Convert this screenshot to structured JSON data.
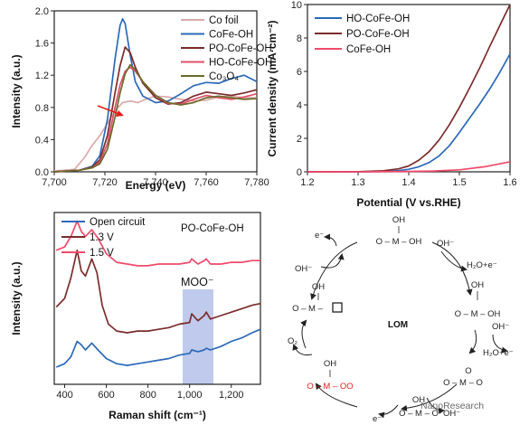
{
  "chart_data": [
    {
      "type": "line",
      "xlabel": "Energy (eV)",
      "ylabel": "Intensity (a.u.)",
      "xlim": [
        7700,
        7780
      ],
      "ylim": [
        0,
        2.0
      ],
      "xticks": [
        "7,700",
        "7,720",
        "7,740",
        "7,760",
        "7,780"
      ],
      "yticks": [
        "0.0",
        "0.4",
        "0.8",
        "1.2",
        "1.6",
        "2.0"
      ],
      "legend": "top-right",
      "series": [
        {
          "name": "Co foil",
          "color": "#dba9a9",
          "x": [
            7700,
            7708,
            7712,
            7715,
            7718,
            7721,
            7724,
            7727,
            7730,
            7733,
            7736,
            7740,
            7745,
            7750,
            7755,
            7760,
            7765,
            7770,
            7775,
            7780
          ],
          "y": [
            0.01,
            0.03,
            0.18,
            0.33,
            0.45,
            0.6,
            0.76,
            0.86,
            0.88,
            0.86,
            0.9,
            0.94,
            0.93,
            0.9,
            0.88,
            0.89,
            0.93,
            0.94,
            0.92,
            0.92
          ]
        },
        {
          "name": "CoFe-OH",
          "color": "#2b69b8",
          "x": [
            7700,
            7710,
            7715,
            7718,
            7721,
            7724,
            7726,
            7727,
            7728,
            7730,
            7732,
            7735,
            7740,
            7745,
            7750,
            7755,
            7760,
            7765,
            7770,
            7775,
            7780
          ],
          "y": [
            0.0,
            0.02,
            0.07,
            0.2,
            0.65,
            1.4,
            1.82,
            1.9,
            1.84,
            1.45,
            1.12,
            0.94,
            0.86,
            0.88,
            0.97,
            1.07,
            1.11,
            1.1,
            1.16,
            1.2,
            1.12
          ]
        },
        {
          "name": "PO-CoFe-OH",
          "color": "#7b2c2c",
          "x": [
            7700,
            7710,
            7715,
            7718,
            7721,
            7724,
            7726,
            7728,
            7730,
            7732,
            7735,
            7740,
            7745,
            7750,
            7755,
            7760,
            7765,
            7770,
            7775,
            7780
          ],
          "y": [
            0.0,
            0.02,
            0.06,
            0.15,
            0.45,
            0.98,
            1.32,
            1.55,
            1.48,
            1.3,
            1.1,
            0.92,
            0.84,
            0.86,
            0.94,
            0.99,
            0.97,
            0.95,
            0.98,
            1.02
          ]
        },
        {
          "name": "HO-CoFe-OH",
          "color": "#e0506a",
          "x": [
            7700,
            7710,
            7715,
            7718,
            7721,
            7724,
            7726,
            7728,
            7730,
            7732,
            7735,
            7740,
            7745,
            7750,
            7755,
            7760,
            7765,
            7770,
            7775,
            7780
          ],
          "y": [
            0.0,
            0.02,
            0.05,
            0.12,
            0.35,
            0.8,
            1.08,
            1.25,
            1.3,
            1.25,
            1.12,
            0.95,
            0.85,
            0.84,
            0.9,
            0.95,
            0.92,
            0.9,
            0.93,
            0.97
          ]
        },
        {
          "name": "Co₃O₄",
          "color": "#6b6b2a",
          "x": [
            7700,
            7710,
            7715,
            7718,
            7721,
            7724,
            7726,
            7728,
            7730,
            7732,
            7735,
            7740,
            7745,
            7750,
            7755,
            7760,
            7765,
            7770,
            7775,
            7780
          ],
          "y": [
            0.0,
            0.02,
            0.05,
            0.1,
            0.28,
            0.68,
            0.98,
            1.22,
            1.33,
            1.27,
            1.12,
            0.95,
            0.86,
            0.83,
            0.86,
            0.92,
            0.94,
            0.92,
            0.9,
            0.91
          ]
        }
      ],
      "annotations": []
    },
    {
      "type": "line",
      "xlabel": "Potential (V vs.RHE)",
      "ylabel": "Current density (mA·cm⁻²)",
      "xlim": [
        1.2,
        1.6
      ],
      "ylim": [
        0,
        10
      ],
      "xticks": [
        "1.2",
        "1.3",
        "1.4",
        "1.5",
        "1.6"
      ],
      "yticks": [
        "0",
        "2",
        "4",
        "6",
        "8",
        "10"
      ],
      "legend": "top-left",
      "series": [
        {
          "name": "HO-CoFe-OH",
          "color": "#2b69b8",
          "x": [
            1.2,
            1.3,
            1.35,
            1.38,
            1.4,
            1.42,
            1.44,
            1.46,
            1.48,
            1.5,
            1.52,
            1.54,
            1.56,
            1.58,
            1.6
          ],
          "y": [
            0,
            0,
            0.02,
            0.07,
            0.15,
            0.3,
            0.55,
            0.95,
            1.55,
            2.35,
            3.2,
            4.05,
            4.95,
            5.95,
            7.05
          ]
        },
        {
          "name": "PO-CoFe-OH",
          "color": "#7b2c2c",
          "x": [
            1.2,
            1.3,
            1.35,
            1.38,
            1.4,
            1.42,
            1.44,
            1.46,
            1.48,
            1.5,
            1.52,
            1.54,
            1.56,
            1.58,
            1.6
          ],
          "y": [
            0,
            0.01,
            0.06,
            0.18,
            0.35,
            0.7,
            1.2,
            1.9,
            2.8,
            3.85,
            5.0,
            6.2,
            7.5,
            8.75,
            10.0
          ]
        },
        {
          "name": "CoFe-OH",
          "color": "#f04a6b",
          "x": [
            1.2,
            1.3,
            1.4,
            1.45,
            1.5,
            1.55,
            1.6
          ],
          "y": [
            0,
            0,
            0.02,
            0.05,
            0.12,
            0.3,
            0.6
          ]
        }
      ]
    },
    {
      "type": "line",
      "title": "PO-CoFe-OH",
      "xlabel": "Raman shift (cm⁻¹)",
      "ylabel": "Intensity (a.u.)",
      "xlim": [
        350,
        1340
      ],
      "xticks": [
        "400",
        "600",
        "800",
        "1,000",
        "1,200"
      ],
      "legend": "top-left",
      "annotations": [
        "MOO⁻"
      ],
      "highlight_band": [
        970,
        1110
      ],
      "series": [
        {
          "name": "Open circuit",
          "color": "#2b69b8",
          "x": [
            360,
            400,
            430,
            460,
            480,
            500,
            530,
            560,
            600,
            650,
            700,
            750,
            800,
            850,
            900,
            950,
            1000,
            1010,
            1040,
            1070,
            1080,
            1100,
            1150,
            1200,
            1250,
            1300,
            1340
          ],
          "y": [
            0.1,
            0.12,
            0.16,
            0.25,
            0.23,
            0.2,
            0.24,
            0.2,
            0.15,
            0.12,
            0.11,
            0.12,
            0.13,
            0.14,
            0.15,
            0.17,
            0.18,
            0.2,
            0.19,
            0.2,
            0.21,
            0.2,
            0.22,
            0.25,
            0.27,
            0.3,
            0.32
          ]
        },
        {
          "name": "1.3 V",
          "color": "#7b2c2c",
          "x": [
            360,
            400,
            430,
            460,
            480,
            500,
            530,
            555,
            580,
            610,
            650,
            700,
            750,
            800,
            850,
            900,
            950,
            1000,
            1010,
            1040,
            1070,
            1080,
            1100,
            1150,
            1200,
            1250,
            1300,
            1340
          ],
          "y": [
            0.45,
            0.5,
            0.62,
            0.78,
            0.66,
            0.63,
            0.73,
            0.65,
            0.46,
            0.35,
            0.31,
            0.3,
            0.31,
            0.31,
            0.32,
            0.33,
            0.35,
            0.36,
            0.41,
            0.37,
            0.4,
            0.42,
            0.38,
            0.4,
            0.42,
            0.44,
            0.46,
            0.47
          ]
        },
        {
          "name": "1.5 V",
          "color": "#f04a6b",
          "x": [
            360,
            400,
            430,
            460,
            480,
            500,
            530,
            560,
            600,
            650,
            700,
            750,
            800,
            850,
            900,
            950,
            1000,
            1010,
            1040,
            1070,
            1080,
            1100,
            1150,
            1200,
            1250,
            1300,
            1340
          ],
          "y": [
            0.78,
            0.8,
            0.86,
            0.95,
            0.89,
            0.86,
            0.9,
            0.85,
            0.76,
            0.71,
            0.7,
            0.69,
            0.69,
            0.7,
            0.7,
            0.7,
            0.71,
            0.73,
            0.7,
            0.72,
            0.73,
            0.7,
            0.7,
            0.71,
            0.71,
            0.72,
            0.72
          ]
        }
      ]
    }
  ],
  "lom": {
    "center": "LOM",
    "species_top": "OH",
    "species_mid": "O – M – OH",
    "species_right_top": "OH",
    "species_right": "O – M – OH",
    "species_right_bot": "O",
    "species_right_bot2": "O – M – O",
    "species_bottom_top": "OH",
    "species_bottom": "O – M – O",
    "species_left_bot_top": "OH",
    "species_left_bot": "O – M – OO",
    "species_left_top": "OH",
    "species_left": "O – M –",
    "label_oh_in_1": "OH⁻",
    "label_oh_in_2": "OH⁻",
    "label_oh_in_3": "OH⁻",
    "label_oh_in_4": "OH⁻",
    "label_e_1": "e⁻",
    "label_e_2": "e⁻",
    "label_h2o_1": "H₂O+e⁻",
    "label_h2o_2": "H₂O+e⁻",
    "label_o2": "O₂"
  },
  "watermark": "NanoResearch",
  "colors": {
    "accent_red": "#e02020",
    "highlight": "#aab8e6"
  }
}
